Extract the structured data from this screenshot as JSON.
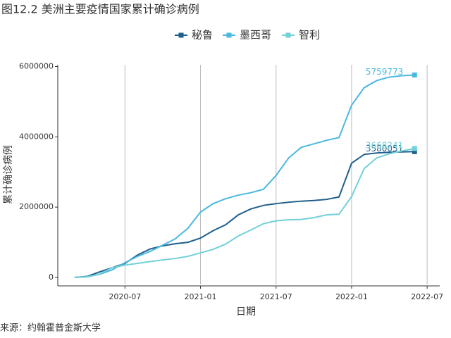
{
  "chart_data": {
    "type": "line",
    "title": "图12.2 美洲主要疫情国家累计确诊病例",
    "x_label": "日期",
    "y_label": "累计确诊病例",
    "source": "来源：约翰霍普金斯大学",
    "x": [
      "2020-03",
      "2020-04",
      "2020-05",
      "2020-06",
      "2020-07",
      "2020-08",
      "2020-09",
      "2020-10",
      "2020-11",
      "2020-12",
      "2021-01",
      "2021-02",
      "2021-03",
      "2021-04",
      "2021-05",
      "2021-06",
      "2021-07",
      "2021-08",
      "2021-09",
      "2021-10",
      "2021-11",
      "2021-12",
      "2022-01",
      "2022-02",
      "2022-03",
      "2022-04",
      "2022-05",
      "2022-06"
    ],
    "series": [
      {
        "name": "秘鲁",
        "color": "#1f5f8b",
        "values": [
          1000,
          30000,
          160000,
          280000,
          400000,
          640000,
          810000,
          900000,
          960000,
          1000000,
          1120000,
          1330000,
          1500000,
          1780000,
          1950000,
          2050000,
          2100000,
          2140000,
          2170000,
          2190000,
          2220000,
          2290000,
          3250000,
          3500000,
          3540000,
          3560000,
          3570000,
          3580051
        ]
      },
      {
        "name": "墨西哥",
        "color": "#4bb8e0",
        "values": [
          1000,
          20000,
          90000,
          220000,
          420000,
          600000,
          740000,
          920000,
          1100000,
          1400000,
          1860000,
          2100000,
          2240000,
          2340000,
          2410000,
          2510000,
          2900000,
          3400000,
          3700000,
          3800000,
          3900000,
          3980000,
          4900000,
          5400000,
          5600000,
          5700000,
          5740000,
          5759773
        ]
      },
      {
        "name": "智利",
        "color": "#72d0d8",
        "values": [
          2000,
          15000,
          100000,
          280000,
          350000,
          400000,
          450000,
          500000,
          540000,
          600000,
          700000,
          800000,
          950000,
          1180000,
          1350000,
          1530000,
          1610000,
          1640000,
          1650000,
          1700000,
          1780000,
          1800000,
          2300000,
          3100000,
          3400000,
          3520000,
          3600000,
          3668241
        ]
      }
    ],
    "xlim": [
      "2020-02",
      "2022-08"
    ],
    "xticks": [
      "2020-07",
      "2021-01",
      "2021-07",
      "2022-01",
      "2022-07"
    ],
    "ylim": [
      -200000,
      6050000
    ],
    "yticks": [
      0,
      2000000,
      4000000,
      6000000
    ],
    "grid": "x"
  }
}
